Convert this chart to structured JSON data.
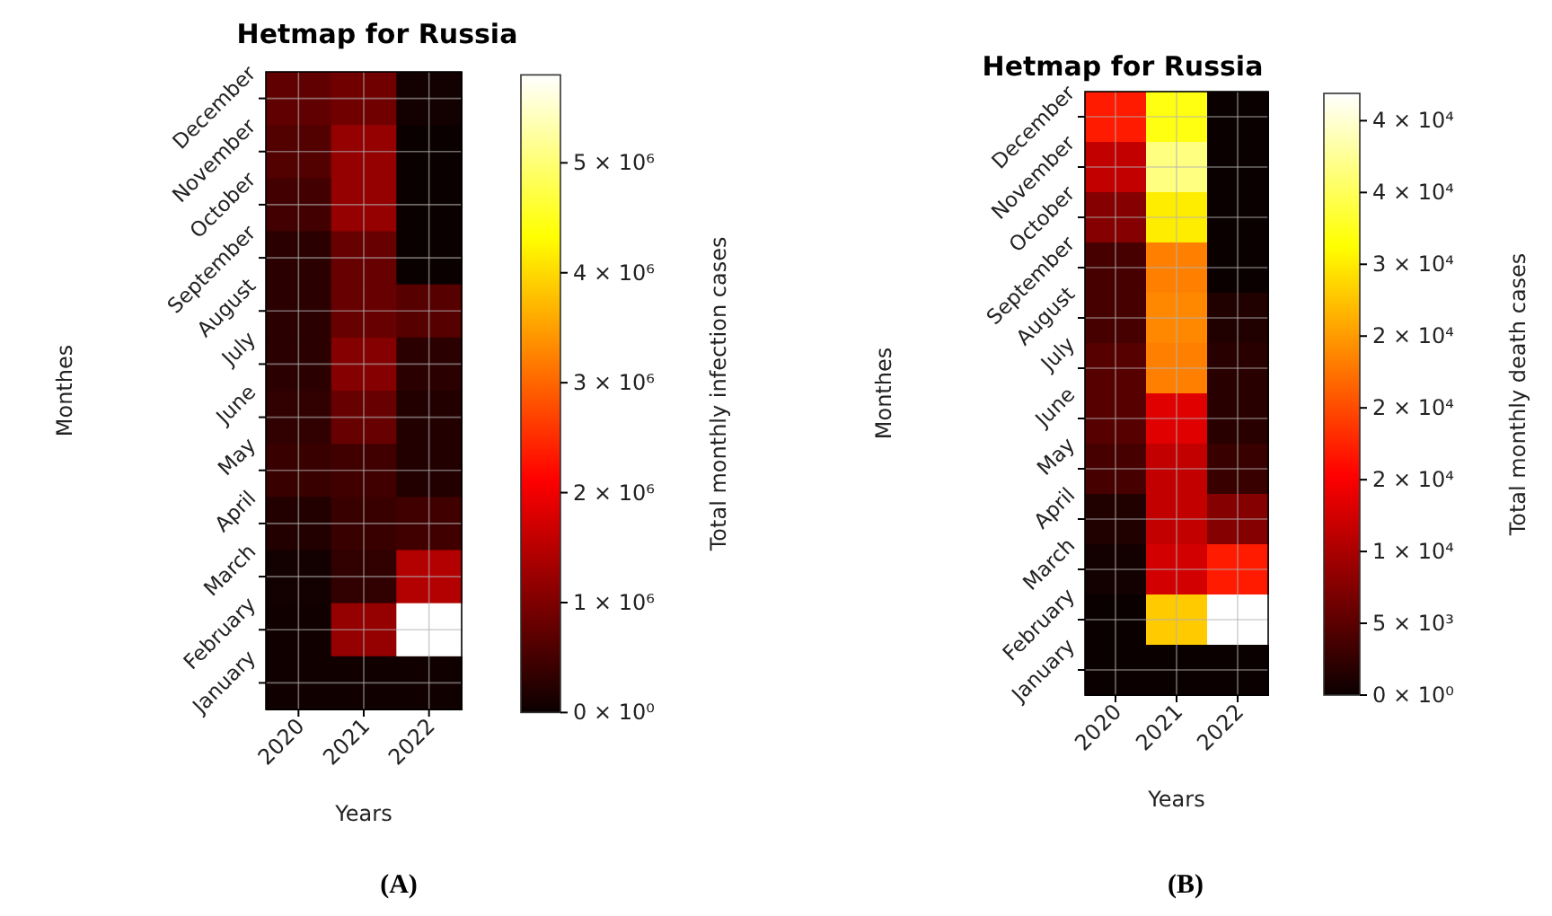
{
  "chart_data": [
    {
      "type": "heatmap",
      "title": "Hetmap for Russia",
      "xlabel": "Years",
      "ylabel": "Monthes",
      "clabel": "Total monthly infection cases",
      "categories": [
        "2020",
        "2021",
        "2022"
      ],
      "y_categories": [
        "December",
        "November",
        "October",
        "September",
        "August",
        "July",
        "June",
        "May",
        "April",
        "March",
        "February",
        "January"
      ],
      "cells": [
        [
          750000,
          880000,
          70000
        ],
        [
          620000,
          1200000,
          0
        ],
        [
          480000,
          1200000,
          0
        ],
        [
          270000,
          800000,
          0
        ],
        [
          270000,
          800000,
          660000
        ],
        [
          270000,
          1060000,
          270000
        ],
        [
          330000,
          800000,
          200000
        ],
        [
          400000,
          470000,
          200000
        ],
        [
          200000,
          400000,
          470000
        ],
        [
          70000,
          330000,
          1460000
        ],
        [
          50000,
          1200000,
          5800000
        ],
        [
          50000,
          50000,
          50000
        ]
      ],
      "clim": [
        0,
        5800000
      ],
      "cticks": [
        {
          "value": 0,
          "label": "0 × 10⁰"
        },
        {
          "value": 1000000,
          "label": "1 × 10⁶"
        },
        {
          "value": 2000000,
          "label": "2 × 10⁶"
        },
        {
          "value": 3000000,
          "label": "3 × 10⁶"
        },
        {
          "value": 4000000,
          "label": "4 × 10⁶"
        },
        {
          "value": 5000000,
          "label": "5 × 10⁶"
        }
      ],
      "grid": true,
      "annotations": [
        "(A)"
      ]
    },
    {
      "type": "heatmap",
      "title": "Hetmap for Russia",
      "xlabel": "Years",
      "ylabel": "Monthes",
      "clabel": "Total monthly death cases",
      "categories": [
        "2020",
        "2021",
        "2022"
      ],
      "y_categories": [
        "December",
        "November",
        "October",
        "September",
        "August",
        "July",
        "June",
        "May",
        "April",
        "March",
        "February",
        "January"
      ],
      "cells": [
        [
          17000,
          32000,
          0
        ],
        [
          11500,
          36600,
          0
        ],
        [
          7650,
          30100,
          0
        ],
        [
          3800,
          23300,
          0
        ],
        [
          3800,
          23800,
          1400
        ],
        [
          4800,
          23300,
          1900
        ],
        [
          4800,
          13400,
          1900
        ],
        [
          3800,
          11500,
          2900
        ],
        [
          1400,
          11500,
          7650
        ],
        [
          500,
          12500,
          17000
        ],
        [
          0,
          28000,
          41900
        ],
        [
          0,
          0,
          0
        ]
      ],
      "clim": [
        0,
        41900
      ],
      "cticks": [
        {
          "value": 0,
          "label": "0 × 10⁰"
        },
        {
          "value": 5000,
          "label": "5 × 10³"
        },
        {
          "value": 10000,
          "label": "1 × 10⁴"
        },
        {
          "value": 15000,
          "label": "2 × 10⁴"
        },
        {
          "value": 20000,
          "label": "2 × 10⁴"
        },
        {
          "value": 25000,
          "label": "2 × 10⁴"
        },
        {
          "value": 30000,
          "label": "3 × 10⁴"
        },
        {
          "value": 35000,
          "label": "4 × 10⁴"
        },
        {
          "value": 40000,
          "label": "4 × 10⁴"
        }
      ],
      "grid": true,
      "annotations": [
        "(B)"
      ]
    }
  ]
}
